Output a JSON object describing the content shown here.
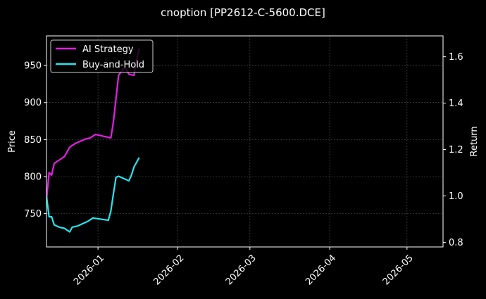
{
  "chart_data": {
    "type": "line",
    "title": "cnoption [PP2612-C-5600.DCE]",
    "ylabel": "Price",
    "y2label": "Return",
    "xlim": [
      "2025-12-12",
      "2026-05-15"
    ],
    "ylim": [
      705,
      990
    ],
    "y2lim": [
      0.78,
      1.69
    ],
    "x_ticks": [
      "2026-01",
      "2026-02",
      "2026-03",
      "2026-04",
      "2026-05"
    ],
    "y_ticks": [
      750,
      800,
      850,
      900,
      950
    ],
    "y2_ticks": [
      "0.8",
      "1.0",
      "1.2",
      "1.4",
      "1.6"
    ],
    "grid": true,
    "legend_position": "top-left",
    "series": [
      {
        "name": "AI Strategy",
        "axis": "right",
        "color": "#e61ee6",
        "points": [
          [
            "2025-12-12",
            0.98
          ],
          [
            "2025-12-13",
            1.1
          ],
          [
            "2025-12-14",
            1.09
          ],
          [
            "2025-12-15",
            1.14
          ],
          [
            "2025-12-17",
            1.155
          ],
          [
            "2025-12-19",
            1.17
          ],
          [
            "2025-12-21",
            1.21
          ],
          [
            "2025-12-23",
            1.225
          ],
          [
            "2025-12-25",
            1.235
          ],
          [
            "2025-12-27",
            1.245
          ],
          [
            "2025-12-29",
            1.25
          ],
          [
            "2025-12-31",
            1.265
          ],
          [
            "2026-01-06",
            1.25
          ],
          [
            "2026-01-07",
            1.32
          ],
          [
            "2026-01-08",
            1.42
          ],
          [
            "2026-01-09",
            1.52
          ],
          [
            "2026-01-11",
            1.55
          ],
          [
            "2026-01-12",
            1.545
          ],
          [
            "2026-01-13",
            1.525
          ],
          [
            "2026-01-15",
            1.52
          ],
          [
            "2026-01-16",
            1.59
          ],
          [
            "2026-01-17",
            1.635
          ]
        ]
      },
      {
        "name": "Buy-and-Hold",
        "axis": "right",
        "color": "#22e6ee",
        "points": [
          [
            "2025-12-12",
            1.0
          ],
          [
            "2025-12-13",
            0.91
          ],
          [
            "2025-12-14",
            0.91
          ],
          [
            "2025-12-15",
            0.875
          ],
          [
            "2025-12-17",
            0.865
          ],
          [
            "2025-12-19",
            0.86
          ],
          [
            "2025-12-21",
            0.845
          ],
          [
            "2025-12-22",
            0.865
          ],
          [
            "2025-12-24",
            0.87
          ],
          [
            "2025-12-26",
            0.88
          ],
          [
            "2025-12-28",
            0.89
          ],
          [
            "2025-12-30",
            0.905
          ],
          [
            "2026-01-05",
            0.895
          ],
          [
            "2026-01-06",
            0.935
          ],
          [
            "2026-01-07",
            1.01
          ],
          [
            "2026-01-08",
            1.08
          ],
          [
            "2026-01-09",
            1.085
          ],
          [
            "2026-01-13",
            1.065
          ],
          [
            "2026-01-14",
            1.09
          ],
          [
            "2026-01-15",
            1.125
          ],
          [
            "2026-01-17",
            1.165
          ]
        ]
      }
    ]
  }
}
